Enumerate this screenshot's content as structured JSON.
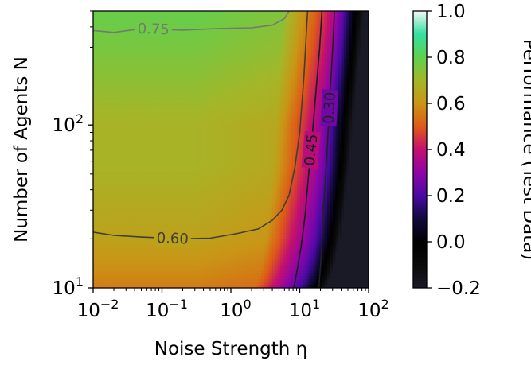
{
  "chart_data": {
    "type": "heatmap",
    "title": "",
    "xlabel": "Noise Strength η",
    "ylabel": "Number of Agents N",
    "xscale": "log",
    "yscale": "log",
    "xlim": [
      0.01,
      100
    ],
    "ylim": [
      10,
      500
    ],
    "x_ticks": [
      {
        "value": 0.01,
        "base": "10",
        "exp": "−2"
      },
      {
        "value": 0.1,
        "base": "10",
        "exp": "−1"
      },
      {
        "value": 1,
        "base": "10",
        "exp": "0"
      },
      {
        "value": 10,
        "base": "10",
        "exp": "1"
      },
      {
        "value": 100,
        "base": "10",
        "exp": "2"
      }
    ],
    "y_ticks": [
      {
        "value": 10,
        "base": "10",
        "exp": "1"
      },
      {
        "value": 100,
        "base": "10",
        "exp": "2"
      }
    ],
    "colormap": "gnuplot2-like",
    "colorbar": {
      "label": "Performance (Test Data)",
      "range": [
        -0.2,
        1.0
      ],
      "ticks": [
        {
          "value": -0.2,
          "label": "−0.2"
        },
        {
          "value": 0.0,
          "label": "0.0"
        },
        {
          "value": 0.2,
          "label": "0.2"
        },
        {
          "value": 0.4,
          "label": "0.4"
        },
        {
          "value": 0.6,
          "label": "0.6"
        },
        {
          "value": 0.8,
          "label": "0.8"
        },
        {
          "value": 1.0,
          "label": "1.0"
        }
      ],
      "stops": [
        {
          "v": -0.2,
          "color": "#1a1a26"
        },
        {
          "v": -0.1,
          "color": "#0a0a0a"
        },
        {
          "v": 0.0,
          "color": "#000000"
        },
        {
          "v": 0.1,
          "color": "#120a3c"
        },
        {
          "v": 0.2,
          "color": "#4a0aa6"
        },
        {
          "v": 0.3,
          "color": "#8e06a6"
        },
        {
          "v": 0.4,
          "color": "#c4106e"
        },
        {
          "v": 0.5,
          "color": "#de5a17"
        },
        {
          "v": 0.6,
          "color": "#c99616"
        },
        {
          "v": 0.7,
          "color": "#a5b628"
        },
        {
          "v": 0.8,
          "color": "#5fd04e"
        },
        {
          "v": 0.9,
          "color": "#33e0a3"
        },
        {
          "v": 1.0,
          "color": "#f4f8f4"
        }
      ]
    },
    "contours": [
      {
        "level": 0.75,
        "label": "0.75",
        "color": "#6e7d6e",
        "points": [
          [
            0.01,
            380
          ],
          [
            0.02,
            370
          ],
          [
            0.05,
            390
          ],
          [
            0.2,
            382
          ],
          [
            0.6,
            390
          ],
          [
            2,
            395
          ],
          [
            4,
            410
          ],
          [
            6,
            450
          ],
          [
            7,
            500
          ]
        ]
      },
      {
        "level": 0.6,
        "label": "0.60",
        "color": "#404030",
        "points": [
          [
            0.01,
            22
          ],
          [
            0.02,
            21
          ],
          [
            0.05,
            20.5
          ],
          [
            0.2,
            20
          ],
          [
            0.5,
            20.2
          ],
          [
            1.2,
            21.5
          ],
          [
            2.5,
            23
          ],
          [
            4,
            26
          ],
          [
            5.5,
            30
          ],
          [
            7,
            37
          ],
          [
            8.5,
            55
          ],
          [
            10,
            90
          ],
          [
            11.5,
            200
          ],
          [
            13,
            500
          ]
        ]
      },
      {
        "level": 0.45,
        "label": "0.45",
        "color": "#1c1c1c",
        "points": [
          [
            8.2,
            10
          ],
          [
            9.2,
            13
          ],
          [
            10.5,
            18
          ],
          [
            12,
            28
          ],
          [
            13.2,
            45
          ],
          [
            15,
            80
          ],
          [
            17,
            150
          ],
          [
            19.5,
            300
          ],
          [
            21,
            500
          ]
        ]
      },
      {
        "level": 0.3,
        "label": "0.30",
        "color": "#222222",
        "points": [
          [
            19,
            10
          ],
          [
            20.5,
            16
          ],
          [
            22,
            30
          ],
          [
            24.5,
            60
          ],
          [
            27,
            130
          ],
          [
            29.5,
            250
          ],
          [
            32,
            500
          ]
        ]
      }
    ]
  }
}
